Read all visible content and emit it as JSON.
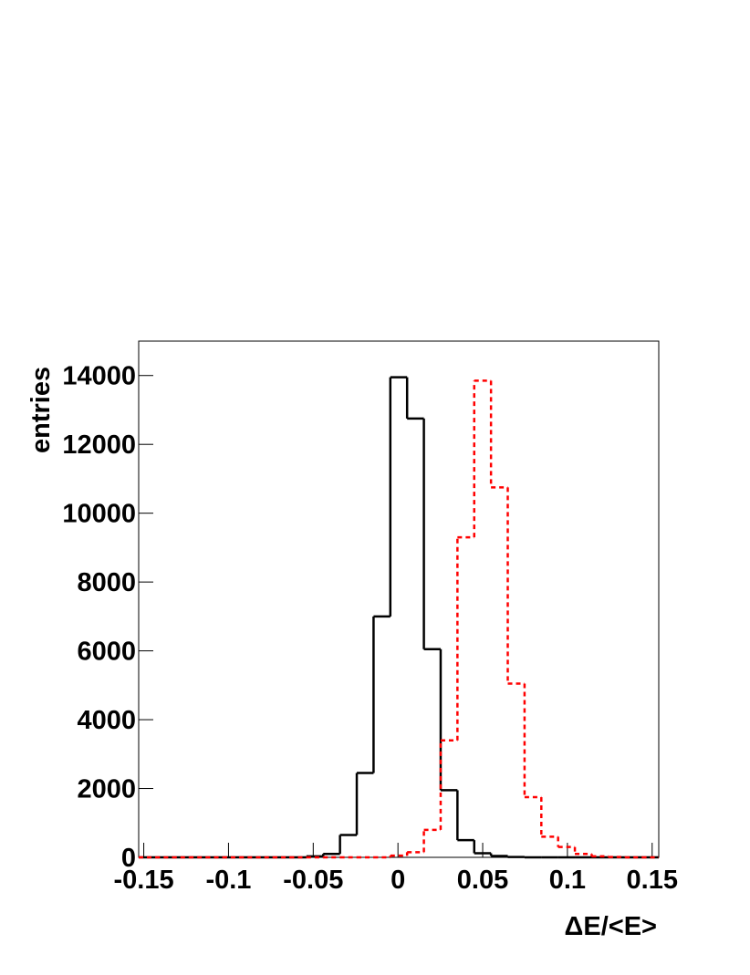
{
  "chart_data": {
    "type": "histogram",
    "xlabel": "ΔE/<E>",
    "ylabel": "entries",
    "bins": [
      -0.153,
      -0.1431,
      -0.1332,
      -0.1233,
      -0.1134,
      -0.1035,
      -0.0936,
      -0.0837,
      -0.0738,
      -0.0639,
      -0.054,
      -0.0441,
      -0.0342,
      -0.0243,
      -0.0144,
      -0.0045,
      0.0054,
      0.0153,
      0.0252,
      0.0351,
      0.045,
      0.0549,
      0.0648,
      0.0747,
      0.0846,
      0.0945,
      0.1044,
      0.1143,
      0.1242,
      0.1341,
      0.144,
      0.1539
    ],
    "series": [
      {
        "color": "#000000",
        "dashed": false,
        "values": [
          0,
          0,
          0,
          0,
          0,
          0,
          0,
          0,
          0,
          0,
          30,
          100,
          650,
          2450,
          7000,
          13950,
          12750,
          6050,
          1950,
          500,
          120,
          40,
          10,
          0,
          0,
          0,
          0,
          0,
          0,
          0,
          0
        ]
      },
      {
        "color": "#ff0000",
        "dashed": true,
        "values": [
          0,
          0,
          0,
          0,
          0,
          0,
          0,
          0,
          0,
          0,
          0,
          0,
          0,
          0,
          0,
          50,
          150,
          800,
          3400,
          9300,
          13850,
          10750,
          5050,
          1750,
          600,
          300,
          100,
          30,
          10,
          0,
          0
        ]
      }
    ],
    "xlim": [
      -0.153,
      0.1539
    ],
    "ylim": [
      0,
      15000
    ],
    "xticks": [
      -0.15,
      -0.1,
      -0.05,
      0,
      0.05,
      0.1,
      0.15
    ],
    "yticks": [
      0,
      2000,
      4000,
      6000,
      8000,
      10000,
      12000,
      14000
    ]
  }
}
